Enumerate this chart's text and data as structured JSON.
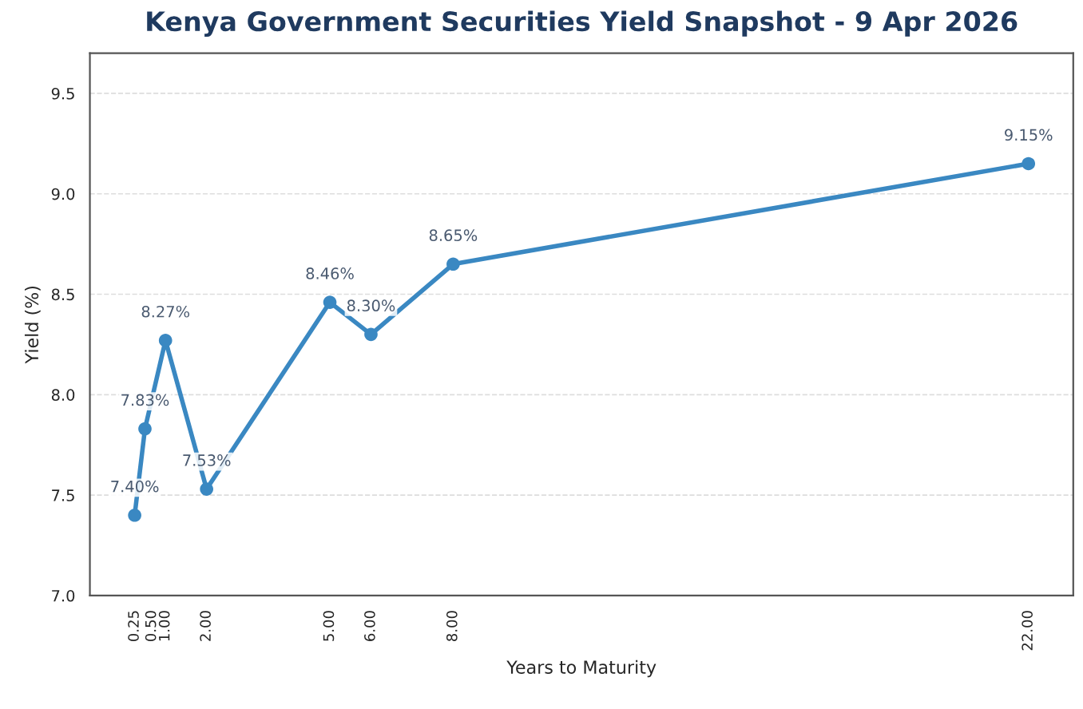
{
  "chart_data": {
    "type": "line",
    "title": "Kenya Government Securities Yield Snapshot - 9 Apr 2026",
    "xlabel": "Years to Maturity",
    "ylabel": "Yield (%)",
    "x": [
      0.25,
      0.5,
      1,
      2,
      5,
      6,
      8,
      22
    ],
    "series": [
      {
        "color": "#3a88c2",
        "values": [
          7.4,
          7.83,
          8.27,
          7.53,
          8.46,
          8.3,
          8.65,
          9.15
        ],
        "value_labels": [
          "7.40%",
          "7.83%",
          "8.27%",
          "7.53%",
          "8.46%",
          "8.30%",
          "8.65%",
          "9.15%"
        ]
      }
    ],
    "xlim": [
      -0.84,
      23.09
    ],
    "ylim": [
      7.0,
      9.7
    ],
    "xticks": [
      {
        "value": 0.25,
        "label": "0.25"
      },
      {
        "value": 0.5,
        "label": "0.50"
      },
      {
        "value": 1,
        "label": "1.00"
      },
      {
        "value": 2,
        "label": "2.00"
      },
      {
        "value": 5,
        "label": "5.00"
      },
      {
        "value": 6,
        "label": "6.00"
      },
      {
        "value": 8,
        "label": "8.00"
      },
      {
        "value": 22,
        "label": "22.00"
      }
    ],
    "yticks": [
      {
        "value": 7.0,
        "label": "7.0"
      },
      {
        "value": 7.5,
        "label": "7.5"
      },
      {
        "value": 8.0,
        "label": "8.0"
      },
      {
        "value": 8.5,
        "label": "8.5"
      },
      {
        "value": 9.0,
        "label": "9.0"
      },
      {
        "value": 9.5,
        "label": "9.5"
      }
    ],
    "grid": "y",
    "marker": "circle",
    "line_style": "solid",
    "legend": false
  }
}
